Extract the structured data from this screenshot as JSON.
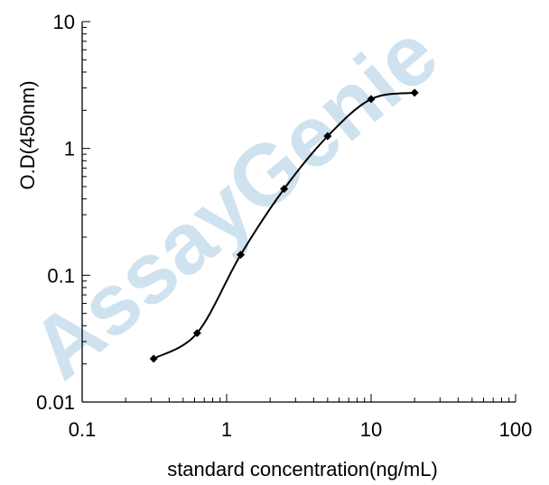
{
  "watermark": "AssayGenie",
  "chart_data": {
    "type": "line",
    "title": "",
    "xlabel": "standard concentration(ng/mL)",
    "ylabel": "O.D(450nm)",
    "xscale": "log",
    "yscale": "log",
    "xlim": [
      0.1,
      100
    ],
    "ylim": [
      0.01,
      10
    ],
    "x_ticks": [
      "0.1",
      "1",
      "10",
      "100"
    ],
    "y_ticks": [
      "0.01",
      "0.1",
      "1",
      "10"
    ],
    "grid": false,
    "legend": "none",
    "line_color": "#000000",
    "series": [
      {
        "x": [
          0.3125,
          0.625,
          1.25,
          2.5,
          5,
          10,
          20
        ],
        "y": [
          0.022,
          0.035,
          0.145,
          0.48,
          1.25,
          2.45,
          2.75
        ]
      }
    ]
  }
}
